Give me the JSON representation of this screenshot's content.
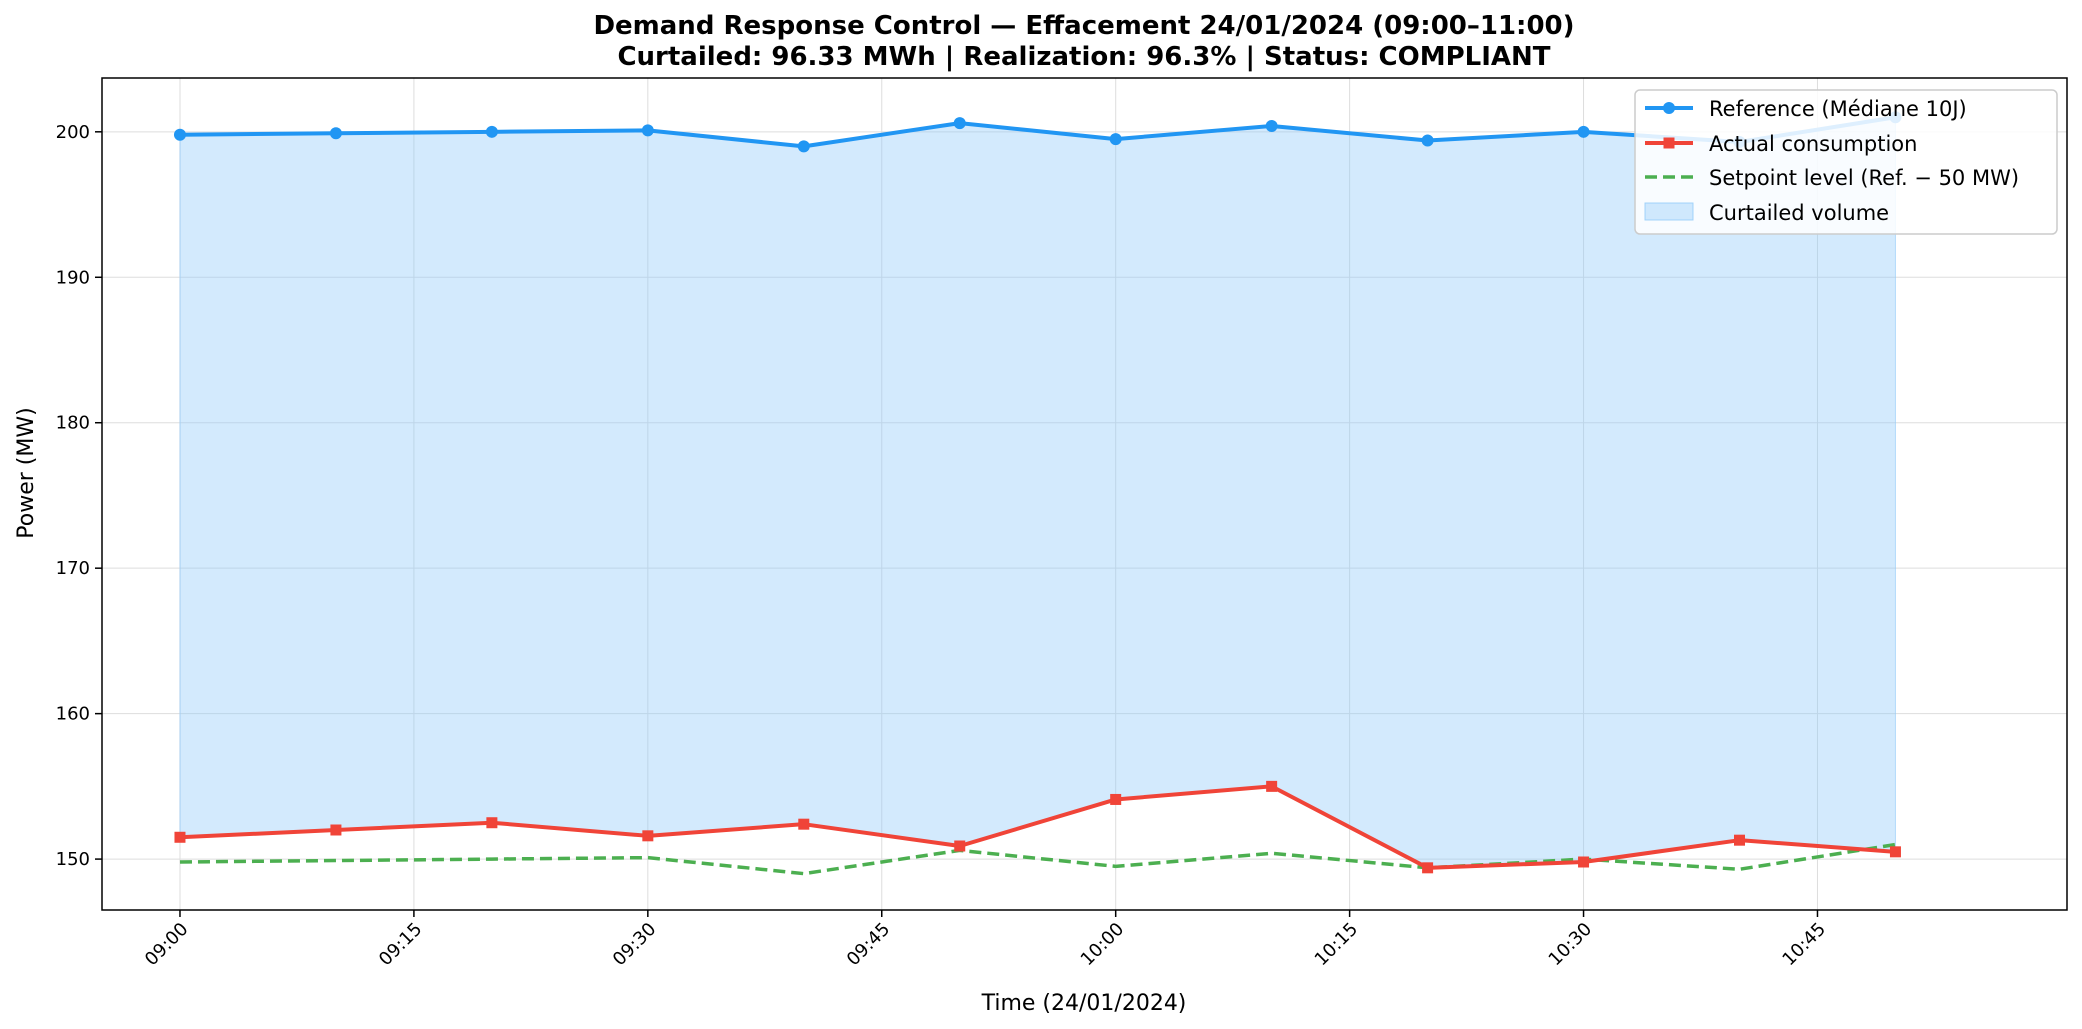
{
  "colors": {
    "reference": "#2196f3",
    "actual": "#f04438",
    "setpoint": "#4caf50",
    "fill": "#90caf9",
    "grid": "#dddddd"
  },
  "chart_data": {
    "type": "line",
    "title": "Demand Response Control — Effacement 24/01/2024 (09:00–11:00)",
    "subtitle": "Curtailed: 96.33 MWh | Realization: 96.3% | Status: COMPLIANT",
    "xlabel": "Time (24/01/2024)",
    "ylabel": "Power (MW)",
    "x": [
      "09:00",
      "09:10",
      "09:20",
      "09:30",
      "09:40",
      "09:50",
      "10:00",
      "10:10",
      "10:20",
      "10:30",
      "10:40",
      "10:50"
    ],
    "x_ticks": [
      "09:00",
      "09:15",
      "09:30",
      "09:45",
      "10:00",
      "10:15",
      "10:30",
      "10:45"
    ],
    "y_ticks": [
      150,
      160,
      170,
      180,
      190,
      200
    ],
    "xlim": [
      "08:55",
      "11:01"
    ],
    "ylim": [
      146.5,
      203.7
    ],
    "grid": true,
    "legend_position": "top-right",
    "series": [
      {
        "name": "Reference (Médiane 10J)",
        "key": "reference",
        "values": [
          199.8,
          199.9,
          200.0,
          200.1,
          199.0,
          200.6,
          199.5,
          200.4,
          199.4,
          200.0,
          199.3,
          201.0
        ]
      },
      {
        "name": "Actual consumption",
        "key": "actual",
        "values": [
          151.5,
          152.0,
          152.5,
          151.6,
          152.4,
          150.9,
          154.1,
          155.0,
          149.4,
          149.8,
          151.3,
          150.5
        ]
      },
      {
        "name": "Setpoint level (Ref. − 50 MW)",
        "key": "setpoint",
        "values": [
          149.8,
          149.9,
          150.0,
          150.1,
          149.0,
          150.6,
          149.5,
          150.4,
          149.4,
          150.0,
          149.3,
          151.0
        ]
      }
    ],
    "fill_label": "Curtailed volume"
  }
}
